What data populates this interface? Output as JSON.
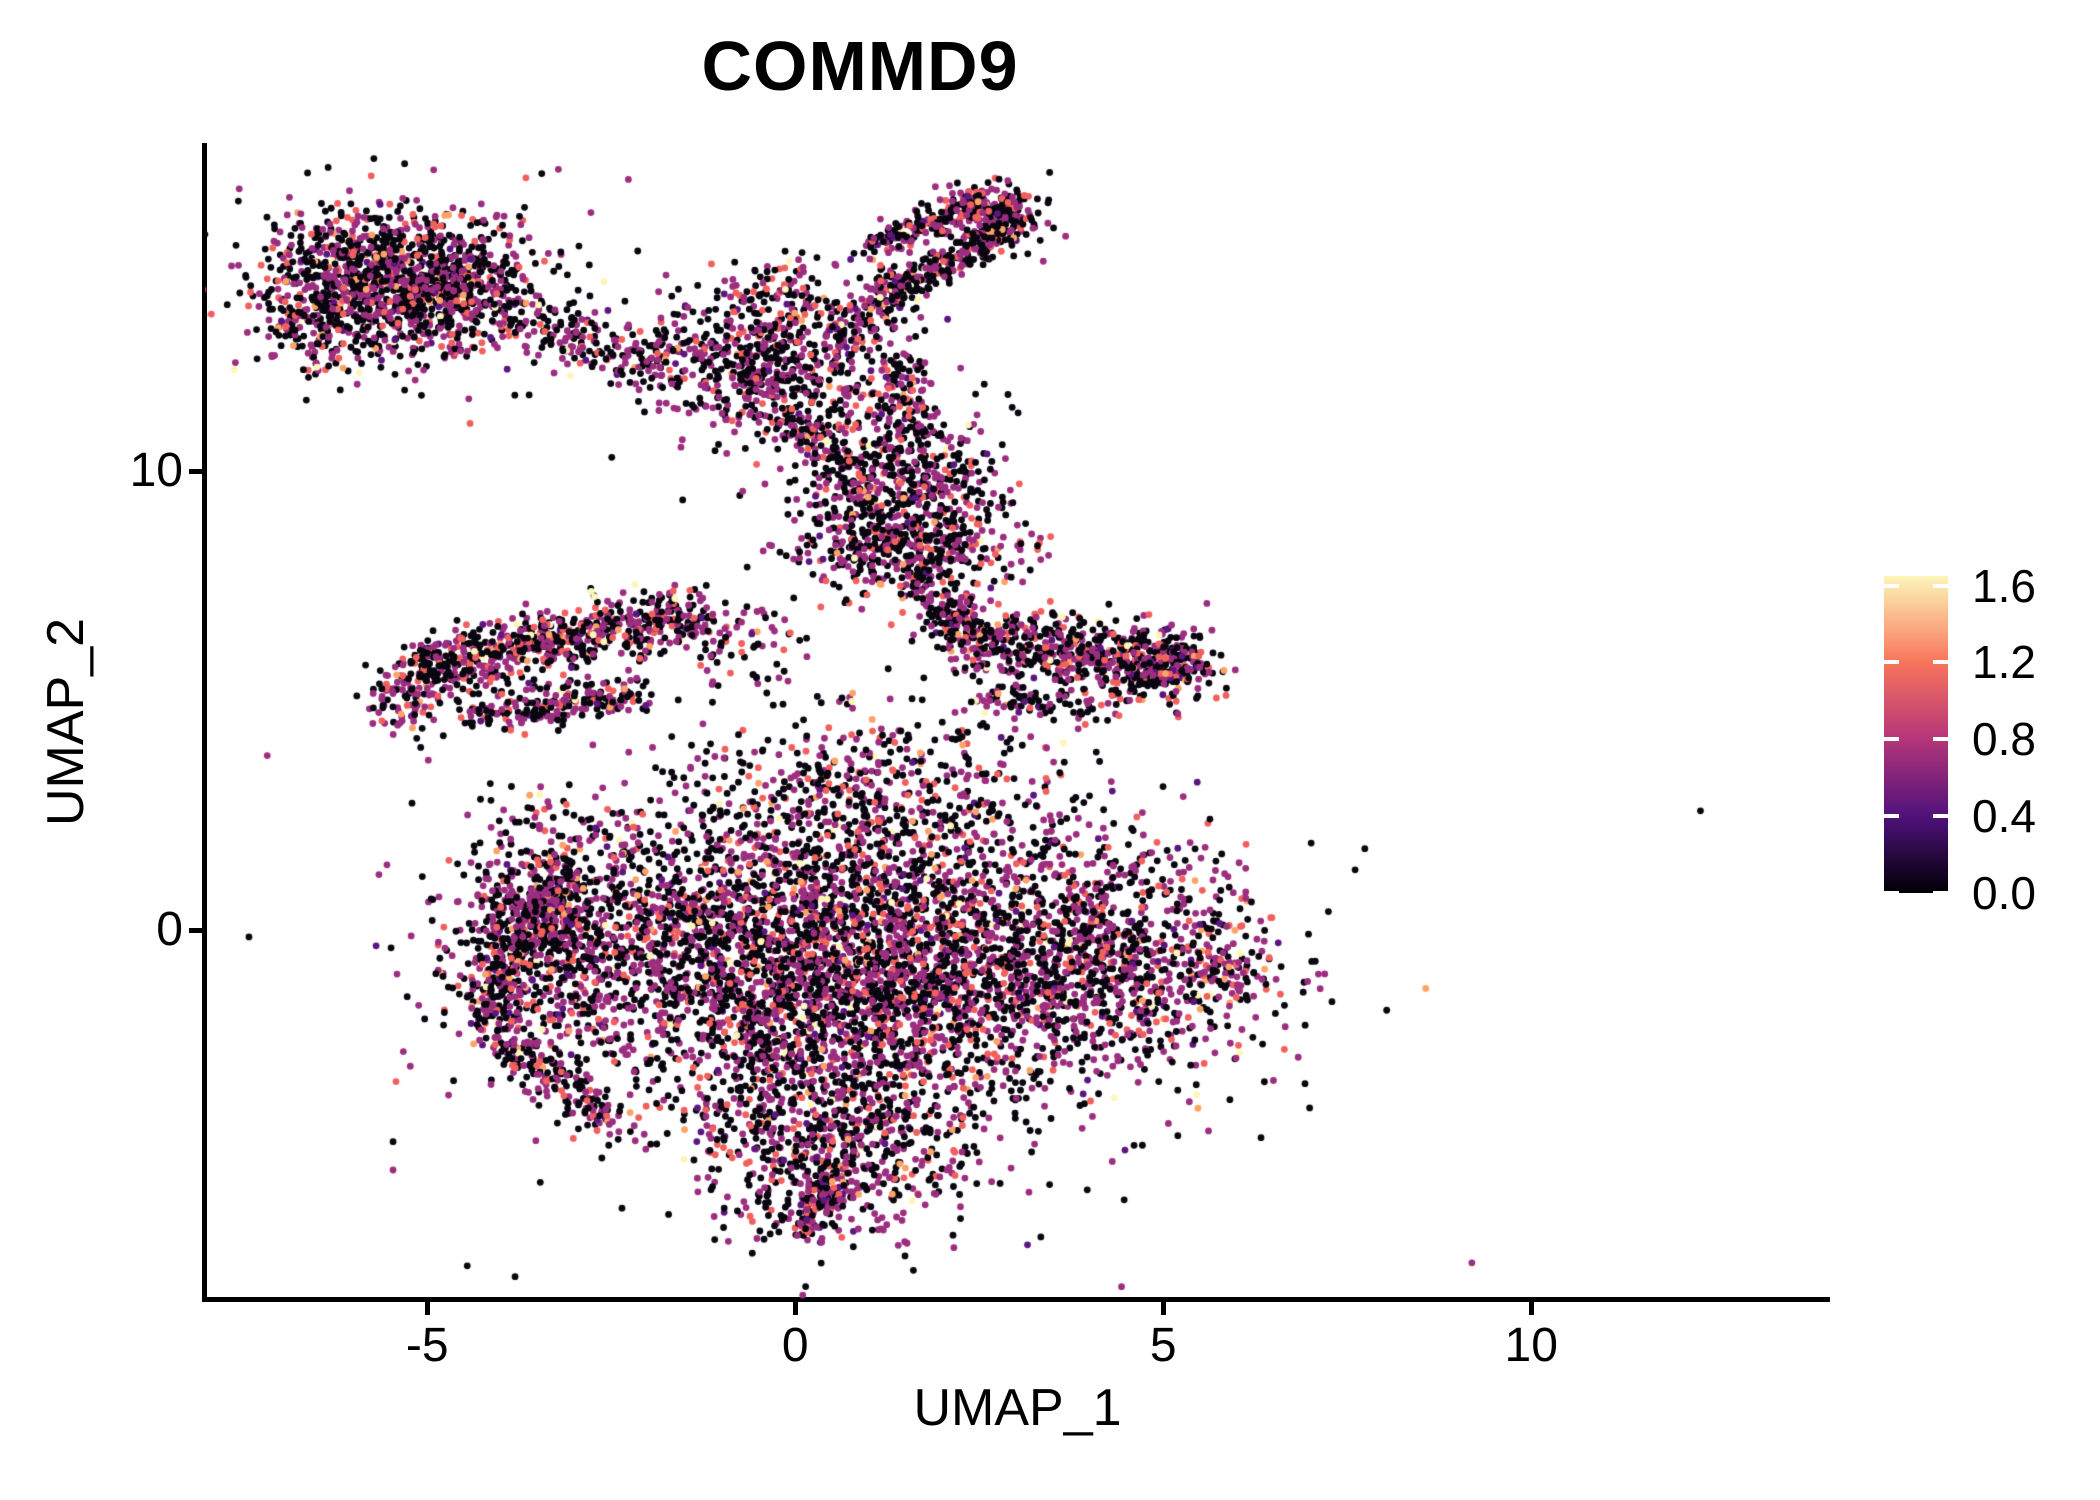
{
  "title": "COMMD9",
  "x_axis": {
    "label": "UMAP_1",
    "ticks": [
      {
        "label": "-5",
        "value": -5
      },
      {
        "label": "0",
        "value": 0
      },
      {
        "label": "5",
        "value": 5
      },
      {
        "label": "10",
        "value": 10
      }
    ]
  },
  "y_axis": {
    "label": "UMAP_2",
    "ticks": [
      {
        "label": "0",
        "value": 0
      },
      {
        "label": "10",
        "value": 10
      }
    ]
  },
  "colorbar": {
    "ticks": [
      {
        "label": "1.6",
        "value": 1.6
      },
      {
        "label": "1.2",
        "value": 1.2
      },
      {
        "label": "0.8",
        "value": 0.8
      },
      {
        "label": "0.4",
        "value": 0.4
      },
      {
        "label": "0.0",
        "value": 0.0
      }
    ],
    "domain": [
      0,
      1.65
    ],
    "gradient_stops": [
      {
        "t": 0.0,
        "color": "#000004"
      },
      {
        "t": 0.24,
        "color": "#4f117b"
      },
      {
        "t": 0.49,
        "color": "#b63679"
      },
      {
        "t": 0.73,
        "color": "#f8765c"
      },
      {
        "t": 1.0,
        "color": "#fcf6b8"
      }
    ]
  },
  "chart_data": {
    "type": "scatter",
    "title": "COMMD9",
    "xlabel": "UMAP_1",
    "ylabel": "UMAP_2",
    "xlim": [
      -8.02,
      14.06
    ],
    "ylim": [
      -8.1,
      17.15
    ],
    "x_ticks": [
      -5,
      0,
      5,
      10
    ],
    "y_ticks": [
      0,
      10
    ],
    "grid": false,
    "legend_position": "right",
    "color_scale": {
      "name": "magma",
      "domain": [
        0,
        1.65
      ]
    },
    "point_radius_px": 3.4,
    "seed": 1337,
    "expression_levels": [
      {
        "value": 0.0,
        "color": "#09060f",
        "share": 0.5
      },
      {
        "value": 0.45,
        "color": "#5c167f",
        "share": 0.03
      },
      {
        "value": 0.75,
        "color": "#9c2e7f",
        "share": 0.33
      },
      {
        "value": 1.15,
        "color": "#f1605d",
        "share": 0.105
      },
      {
        "value": 1.35,
        "color": "#fca368",
        "share": 0.025
      },
      {
        "value": 1.6,
        "color": "#fcf6b8",
        "share": 0.01
      }
    ],
    "clusters": [
      {
        "name": "topleft-core",
        "shape": "blob",
        "cx": -5.5,
        "cy": 14.3,
        "sx": 0.85,
        "sy": 0.75,
        "n": 900
      },
      {
        "name": "topleft-east",
        "shape": "blob",
        "cx": -4.5,
        "cy": 13.7,
        "sx": 0.55,
        "sy": 0.55,
        "n": 280
      },
      {
        "name": "topleft-southwest",
        "shape": "blob",
        "cx": -6.3,
        "cy": 13.4,
        "sx": 0.5,
        "sy": 0.65,
        "n": 220
      },
      {
        "name": "topleft-halo",
        "shape": "blob",
        "cx": -5.3,
        "cy": 13.9,
        "sx": 1.35,
        "sy": 1.15,
        "n": 160
      },
      {
        "name": "bridge-band",
        "shape": "band",
        "x1": -3.4,
        "y1": 12.9,
        "x2": -1.6,
        "y2": 12.4,
        "sd": 0.38,
        "n": 180
      },
      {
        "name": "midtop-core",
        "shape": "blob",
        "cx": -0.35,
        "cy": 12.3,
        "sx": 0.75,
        "sy": 0.8,
        "n": 620
      },
      {
        "name": "midtop-north",
        "shape": "blob",
        "cx": -0.15,
        "cy": 13.7,
        "sx": 0.5,
        "sy": 0.45,
        "n": 100
      },
      {
        "name": "stream-up",
        "shape": "band",
        "x1": 0.7,
        "y1": 12.9,
        "x2": 1.5,
        "y2": 14.3,
        "sd": 0.28,
        "n": 120
      },
      {
        "name": "stream-down",
        "shape": "band",
        "x1": 1.45,
        "y1": 12.3,
        "x2": 1.6,
        "y2": 10.8,
        "sd": 0.3,
        "n": 110
      },
      {
        "name": "neck",
        "shape": "band",
        "x1": -0.1,
        "y1": 11.2,
        "x2": 1.0,
        "y2": 9.9,
        "sd": 0.35,
        "n": 110
      },
      {
        "name": "wedge-upper-arm",
        "shape": "band",
        "x1": 1.0,
        "y1": 14.9,
        "x2": 2.55,
        "y2": 15.9,
        "sd": 0.18,
        "n": 190
      },
      {
        "name": "wedge-lower-arm",
        "shape": "band",
        "x1": 1.2,
        "y1": 13.7,
        "x2": 2.7,
        "y2": 15.1,
        "sd": 0.2,
        "n": 210
      },
      {
        "name": "wedge-knot",
        "shape": "blob",
        "cx": 2.75,
        "cy": 15.5,
        "sx": 0.32,
        "sy": 0.35,
        "n": 220
      },
      {
        "name": "round-cluster",
        "shape": "blob",
        "cx": 1.45,
        "cy": 9.6,
        "sx": 0.72,
        "sy": 1.05,
        "n": 620
      },
      {
        "name": "round-rim",
        "shape": "blob",
        "cx": 1.5,
        "cy": 8.3,
        "sx": 0.8,
        "sy": 0.38,
        "n": 260
      },
      {
        "name": "leftband-top",
        "shape": "band",
        "x1": -5.1,
        "y1": 5.7,
        "x2": -1.4,
        "y2": 6.9,
        "sd": 0.33,
        "n": 680
      },
      {
        "name": "leftband-bottom",
        "shape": "band",
        "x1": -4.4,
        "y1": 4.7,
        "x2": -2.0,
        "y2": 5.2,
        "sd": 0.22,
        "n": 220
      },
      {
        "name": "leftband-tip",
        "shape": "blob",
        "cx": -5.3,
        "cy": 5.1,
        "sx": 0.25,
        "sy": 0.4,
        "n": 110
      },
      {
        "name": "leftband-east",
        "shape": "blob",
        "cx": -0.9,
        "cy": 6.3,
        "sx": 0.55,
        "sy": 0.5,
        "n": 90
      },
      {
        "name": "rightband",
        "shape": "band",
        "x1": 2.2,
        "y1": 6.4,
        "x2": 5.5,
        "y2": 5.6,
        "sd": 0.38,
        "n": 580
      },
      {
        "name": "rightband-knot",
        "shape": "blob",
        "cx": 4.8,
        "cy": 5.9,
        "sx": 0.45,
        "sy": 0.45,
        "n": 190
      },
      {
        "name": "rightband-stream",
        "shape": "band",
        "x1": 1.6,
        "y1": 7.9,
        "x2": 2.3,
        "y2": 6.5,
        "sd": 0.3,
        "n": 140
      },
      {
        "name": "rightband-sub",
        "shape": "band",
        "x1": 2.4,
        "y1": 5.1,
        "x2": 4.2,
        "y2": 4.8,
        "sd": 0.22,
        "n": 90
      },
      {
        "name": "wing",
        "shape": "blob",
        "cx": -3.5,
        "cy": 0.0,
        "sx": 0.62,
        "sy": 1.25,
        "n": 650
      },
      {
        "name": "wing-edge",
        "shape": "band",
        "x1": -4.2,
        "y1": -1.6,
        "x2": -3.1,
        "y2": 1.3,
        "sd": 0.3,
        "n": 260
      },
      {
        "name": "wing-tail",
        "shape": "band",
        "x1": -4.3,
        "y1": -1.9,
        "x2": -2.4,
        "y2": -4.4,
        "sd": 0.27,
        "n": 190
      },
      {
        "name": "core",
        "shape": "blob",
        "cx": 0.6,
        "cy": -0.8,
        "sx": 1.9,
        "sy": 1.6,
        "n": 3300
      },
      {
        "name": "upper-mid",
        "shape": "blob",
        "cx": 0.9,
        "cy": 2.9,
        "sx": 1.4,
        "sy": 0.95,
        "n": 520
      },
      {
        "name": "bottom-v",
        "shape": "blob",
        "cx": 0.6,
        "cy": -4.5,
        "sx": 0.95,
        "sy": 1.15,
        "n": 680
      },
      {
        "name": "bottom-tip",
        "shape": "band",
        "x1": 0.5,
        "y1": -5.4,
        "x2": 0.15,
        "y2": -6.3,
        "sd": 0.3,
        "n": 120
      },
      {
        "name": "right-bulge",
        "shape": "blob",
        "cx": 4.2,
        "cy": -0.6,
        "sx": 1.15,
        "sy": 1.25,
        "n": 900
      },
      {
        "name": "right-tip",
        "shape": "blob",
        "cx": 6.0,
        "cy": -0.9,
        "sx": 0.3,
        "sy": 0.3,
        "n": 60
      },
      {
        "name": "mid-left-fill",
        "shape": "blob",
        "cx": -1.7,
        "cy": 0.6,
        "sx": 0.95,
        "sy": 1.05,
        "n": 360
      },
      {
        "name": "central-halo",
        "shape": "blob",
        "cx": 0.8,
        "cy": -1.2,
        "sx": 2.9,
        "sy": 2.4,
        "n": 380
      }
    ],
    "outlier_points": [
      {
        "x": 12.3,
        "y": 2.6,
        "value": 0.0
      }
    ]
  }
}
